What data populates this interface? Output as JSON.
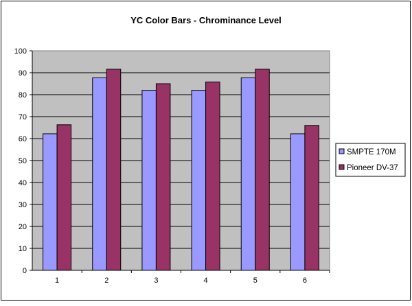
{
  "chart_data": {
    "type": "bar",
    "title": "YC Color Bars - Chrominance Level",
    "xlabel": "",
    "ylabel": "",
    "categories": [
      "1",
      "2",
      "3",
      "4",
      "5",
      "6"
    ],
    "series": [
      {
        "name": "SMPTE 170M",
        "color": "#9999ff",
        "values": [
          62.2,
          87.7,
          82,
          82,
          87.7,
          62.2
        ]
      },
      {
        "name": "Pioneer DV-37",
        "color": "#993366",
        "values": [
          66.3,
          91.6,
          85,
          85.8,
          91.6,
          66
        ]
      }
    ],
    "ylim": [
      0,
      100
    ],
    "yticks": [
      "0",
      "10",
      "20",
      "30",
      "40",
      "50",
      "60",
      "70",
      "80",
      "90",
      "100"
    ],
    "grid": true,
    "plot_background": "#c0c0c0",
    "legend": "right"
  }
}
